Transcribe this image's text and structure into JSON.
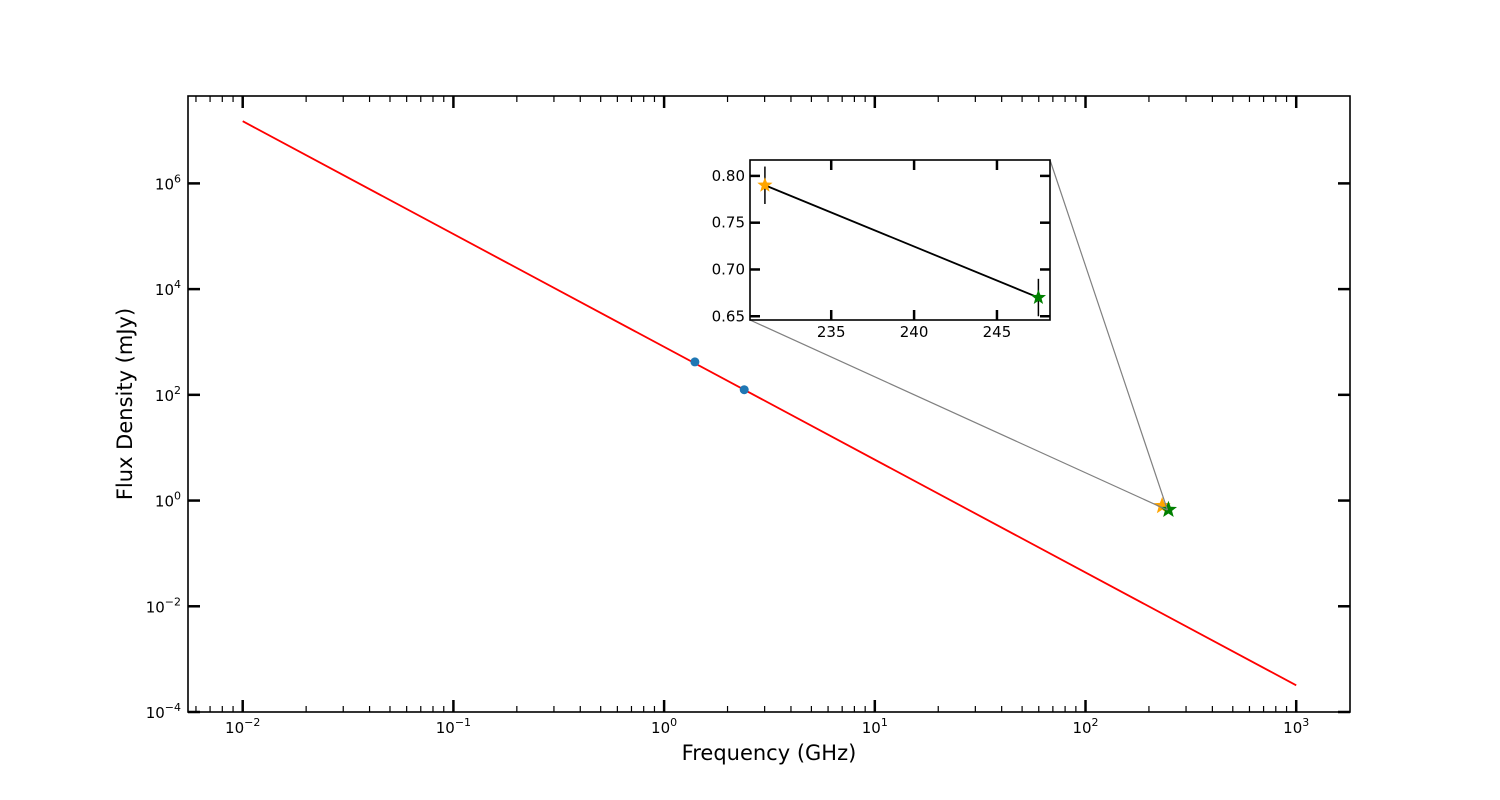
{
  "chart_data": [
    {
      "type": "line",
      "xlabel": "Frequency (GHz)",
      "ylabel": "Flux Density (mJy)",
      "xscale": "log",
      "yscale": "log",
      "xlim": [
        0.0055,
        1800
      ],
      "ylim": [
        0.0001,
        45000000
      ],
      "x_ticks": [
        {
          "base": "10",
          "exp": "−2",
          "value": 0.01
        },
        {
          "base": "10",
          "exp": "−1",
          "value": 0.1
        },
        {
          "base": "10",
          "exp": "0",
          "value": 1
        },
        {
          "base": "10",
          "exp": "1",
          "value": 10
        },
        {
          "base": "10",
          "exp": "2",
          "value": 100
        },
        {
          "base": "10",
          "exp": "3",
          "value": 1000
        }
      ],
      "y_ticks": [
        {
          "base": "10",
          "exp": "−4",
          "value": 0.0001
        },
        {
          "base": "10",
          "exp": "−2",
          "value": 0.01
        },
        {
          "base": "10",
          "exp": "0",
          "value": 1
        },
        {
          "base": "10",
          "exp": "2",
          "value": 100
        },
        {
          "base": "10",
          "exp": "4",
          "value": 10000
        },
        {
          "base": "10",
          "exp": "6",
          "value": 1000000
        }
      ],
      "grid": false,
      "legend": "none",
      "series": [
        {
          "kind": "line",
          "color": "#ff0000",
          "x": [
            0.01,
            1000
          ],
          "y": [
            15000000,
            0.00032
          ]
        },
        {
          "kind": "scatter",
          "marker": "circle",
          "color": "#1f77b4",
          "x": [
            1.4,
            2.4
          ],
          "y": [
            420,
            125
          ]
        },
        {
          "kind": "scatter",
          "marker": "star",
          "color": "#ffa500",
          "x": [
            231
          ],
          "y": [
            0.79
          ]
        },
        {
          "kind": "scatter",
          "marker": "star",
          "color": "#008000",
          "x": [
            247.5
          ],
          "y": [
            0.67
          ]
        }
      ]
    },
    {
      "type": "line",
      "role": "inset",
      "xscale": "linear",
      "yscale": "linear",
      "xlim": [
        230.1,
        248.2
      ],
      "ylim": [
        0.646,
        0.817
      ],
      "x_ticks": [
        {
          "label": "235",
          "value": 235
        },
        {
          "label": "240",
          "value": 240
        },
        {
          "label": "245",
          "value": 245
        }
      ],
      "y_ticks": [
        {
          "label": "0.65",
          "value": 0.65
        },
        {
          "label": "0.70",
          "value": 0.7
        },
        {
          "label": "0.75",
          "value": 0.75
        },
        {
          "label": "0.80",
          "value": 0.8
        }
      ],
      "series": [
        {
          "kind": "line",
          "color": "#000000",
          "x": [
            231,
            247.5
          ],
          "y": [
            0.79,
            0.67
          ]
        },
        {
          "kind": "scatter",
          "marker": "star",
          "color": "#ffa500",
          "x": [
            231
          ],
          "y": [
            0.79
          ],
          "yerr": [
            0.02
          ]
        },
        {
          "kind": "scatter",
          "marker": "star",
          "color": "#008000",
          "x": [
            247.5
          ],
          "y": [
            0.67
          ],
          "yerr": [
            0.02
          ]
        }
      ]
    }
  ]
}
